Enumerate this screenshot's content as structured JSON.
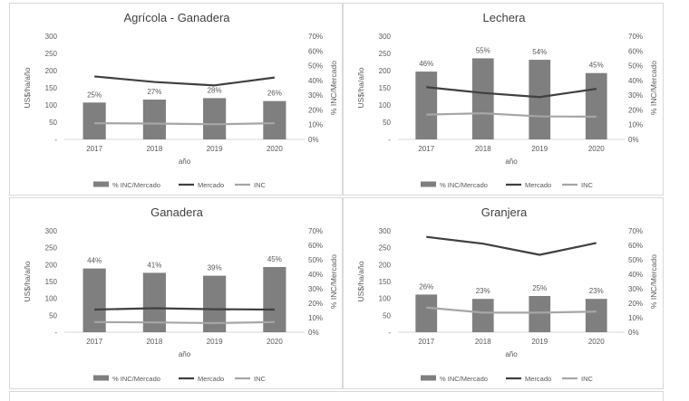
{
  "chart_data": [
    {
      "type": "bar",
      "title": "Agrícola - Ganadera",
      "categories": [
        "2017",
        "2018",
        "2019",
        "2020"
      ],
      "xlabel": "año",
      "ylabel": "US$/ha/año",
      "y2label": "% INC/Mercado",
      "ylim": [
        0,
        300
      ],
      "y2lim": [
        0,
        0.7
      ],
      "yticks": [
        "-",
        "50",
        "100",
        "150",
        "200",
        "250",
        "300"
      ],
      "y2ticks": [
        "0%",
        "10%",
        "20%",
        "30%",
        "40%",
        "50%",
        "60%",
        "70%"
      ],
      "series": [
        {
          "name": "% INC/Mercado",
          "kind": "bar",
          "axis": "right",
          "values": [
            0.25,
            0.27,
            0.28,
            0.26
          ],
          "labels": [
            "25%",
            "27%",
            "28%",
            "26%"
          ]
        },
        {
          "name": "Mercado",
          "kind": "line",
          "axis": "left",
          "values": [
            183,
            167,
            157,
            180
          ]
        },
        {
          "name": "INC",
          "kind": "line",
          "axis": "left",
          "values": [
            47,
            46,
            44,
            47
          ]
        }
      ],
      "legend": "bottom",
      "grid": false
    },
    {
      "type": "bar",
      "title": "Lechera",
      "categories": [
        "2017",
        "2018",
        "2019",
        "2020"
      ],
      "xlabel": "año",
      "ylabel": "US$/ha/año",
      "y2label": "% INC/Mercado",
      "ylim": [
        0,
        300
      ],
      "y2lim": [
        0,
        0.7
      ],
      "yticks": [
        "-",
        "50",
        "100",
        "150",
        "200",
        "250",
        "300"
      ],
      "y2ticks": [
        "0%",
        "10%",
        "20%",
        "30%",
        "40%",
        "50%",
        "60%",
        "70%"
      ],
      "series": [
        {
          "name": "% INC/Mercado",
          "kind": "bar",
          "axis": "right",
          "values": [
            0.46,
            0.55,
            0.54,
            0.45
          ],
          "labels": [
            "46%",
            "55%",
            "54%",
            "45%"
          ]
        },
        {
          "name": "Mercado",
          "kind": "line",
          "axis": "left",
          "values": [
            152,
            135,
            123,
            147
          ]
        },
        {
          "name": "INC",
          "kind": "line",
          "axis": "left",
          "values": [
            72,
            76,
            67,
            66
          ]
        }
      ],
      "legend": "bottom",
      "grid": false
    },
    {
      "type": "bar",
      "title": "Ganadera",
      "categories": [
        "2017",
        "2018",
        "2019",
        "2020"
      ],
      "xlabel": "año",
      "ylabel": "US$/ha/año",
      "y2label": "% INC/Mercado",
      "ylim": [
        0,
        300
      ],
      "y2lim": [
        0,
        0.7
      ],
      "yticks": [
        "-",
        "50",
        "100",
        "150",
        "200",
        "250",
        "300"
      ],
      "y2ticks": [
        "0%",
        "10%",
        "20%",
        "30%",
        "40%",
        "50%",
        "60%",
        "70%"
      ],
      "series": [
        {
          "name": "% INC/Mercado",
          "kind": "bar",
          "axis": "right",
          "values": [
            0.44,
            0.41,
            0.39,
            0.45
          ],
          "labels": [
            "44%",
            "41%",
            "39%",
            "45%"
          ]
        },
        {
          "name": "Mercado",
          "kind": "line",
          "axis": "left",
          "values": [
            67,
            71,
            68,
            67
          ]
        },
        {
          "name": "INC",
          "kind": "line",
          "axis": "left",
          "values": [
            30,
            29,
            27,
            30
          ]
        }
      ],
      "legend": "bottom",
      "grid": false
    },
    {
      "type": "bar",
      "title": "Granjera",
      "categories": [
        "2017",
        "2018",
        "2019",
        "2020"
      ],
      "xlabel": "año",
      "ylabel": "US$/ha/año",
      "y2label": "% INC/Mercado",
      "ylim": [
        0,
        300
      ],
      "y2lim": [
        0,
        0.7
      ],
      "yticks": [
        "-",
        "50",
        "100",
        "150",
        "200",
        "250",
        "300"
      ],
      "y2ticks": [
        "0%",
        "10%",
        "20%",
        "30%",
        "40%",
        "50%",
        "60%",
        "70%"
      ],
      "series": [
        {
          "name": "% INC/Mercado",
          "kind": "bar",
          "axis": "right",
          "values": [
            0.26,
            0.23,
            0.25,
            0.23
          ],
          "labels": [
            "26%",
            "23%",
            "25%",
            "23%"
          ]
        },
        {
          "name": "Mercado",
          "kind": "line",
          "axis": "left",
          "values": [
            282,
            262,
            229,
            264
          ]
        },
        {
          "name": "INC",
          "kind": "line",
          "axis": "left",
          "values": [
            73,
            58,
            58,
            61
          ]
        }
      ],
      "legend": "bottom",
      "grid": false
    }
  ],
  "colors": {
    "bar": "#7f7f7f",
    "mercado": "#404040",
    "inc": "#a6a6a6",
    "text": "#595959",
    "title": "#404040",
    "border": "#d9d9d9"
  }
}
